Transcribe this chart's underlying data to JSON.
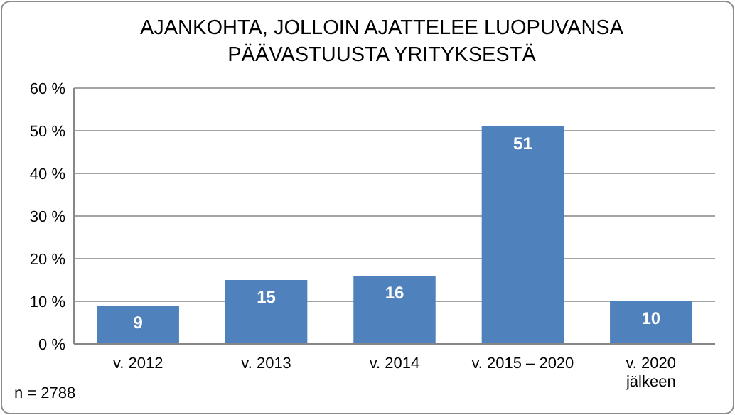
{
  "chart_data": {
    "type": "bar",
    "title": "AJANKOHTA, JOLLOIN AJATTELEE LUOPUVANSA PÄÄVASTUUSTA YRITYKSESTÄ",
    "categories": [
      "v. 2012",
      "v. 2013",
      "v. 2014",
      "v. 2015 – 2020",
      "v. 2020 jälkeen"
    ],
    "values": [
      9,
      15,
      16,
      51,
      10
    ],
    "color": "#4f81bd",
    "data_labels": true,
    "ylim": [
      0,
      60
    ],
    "yticks": [
      {
        "value": 0,
        "label": "0 %"
      },
      {
        "value": 10,
        "label": "10 %"
      },
      {
        "value": 20,
        "label": "20 %"
      },
      {
        "value": 30,
        "label": "30 %"
      },
      {
        "value": 40,
        "label": "40 %"
      },
      {
        "value": 50,
        "label": "50 %"
      },
      {
        "value": 60,
        "label": "60 %"
      }
    ],
    "grid": true,
    "annotations": [
      "n = 2788"
    ]
  }
}
